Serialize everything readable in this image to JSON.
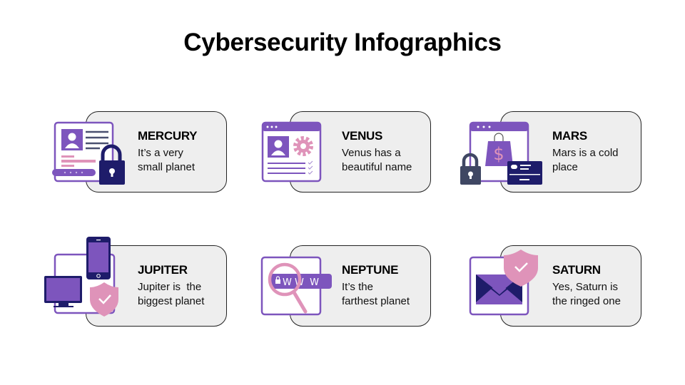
{
  "title": "Cybersecurity Infographics",
  "colors": {
    "purple": "#7d55bd",
    "pink": "#df93b9",
    "navy": "#1e1c6a",
    "gray": "#3f4763",
    "card": "#eeeeee"
  },
  "cards": [
    {
      "title": "MERCURY",
      "line1": "It’s a very",
      "line2": "small planet",
      "icon": "id-card-lock-icon"
    },
    {
      "title": "VENUS",
      "line1": "Venus has a",
      "line2": "beautiful name",
      "icon": "browser-profile-settings-icon"
    },
    {
      "title": "MARS",
      "line1": "Mars is a cold",
      "line2": "place",
      "icon": "secure-shopping-icon"
    },
    {
      "title": "JUPITER",
      "line1": "Jupiter is  the",
      "line2": "biggest planet",
      "icon": "device-shield-icon"
    },
    {
      "title": "NEPTUNE",
      "line1": "It’s the",
      "line2": "farthest planet",
      "icon": "www-search-icon"
    },
    {
      "title": "SATURN",
      "line1": "Yes, Saturn is",
      "line2": "the ringed one",
      "icon": "mail-shield-icon"
    }
  ],
  "neptune_icon_text": "W W  W"
}
